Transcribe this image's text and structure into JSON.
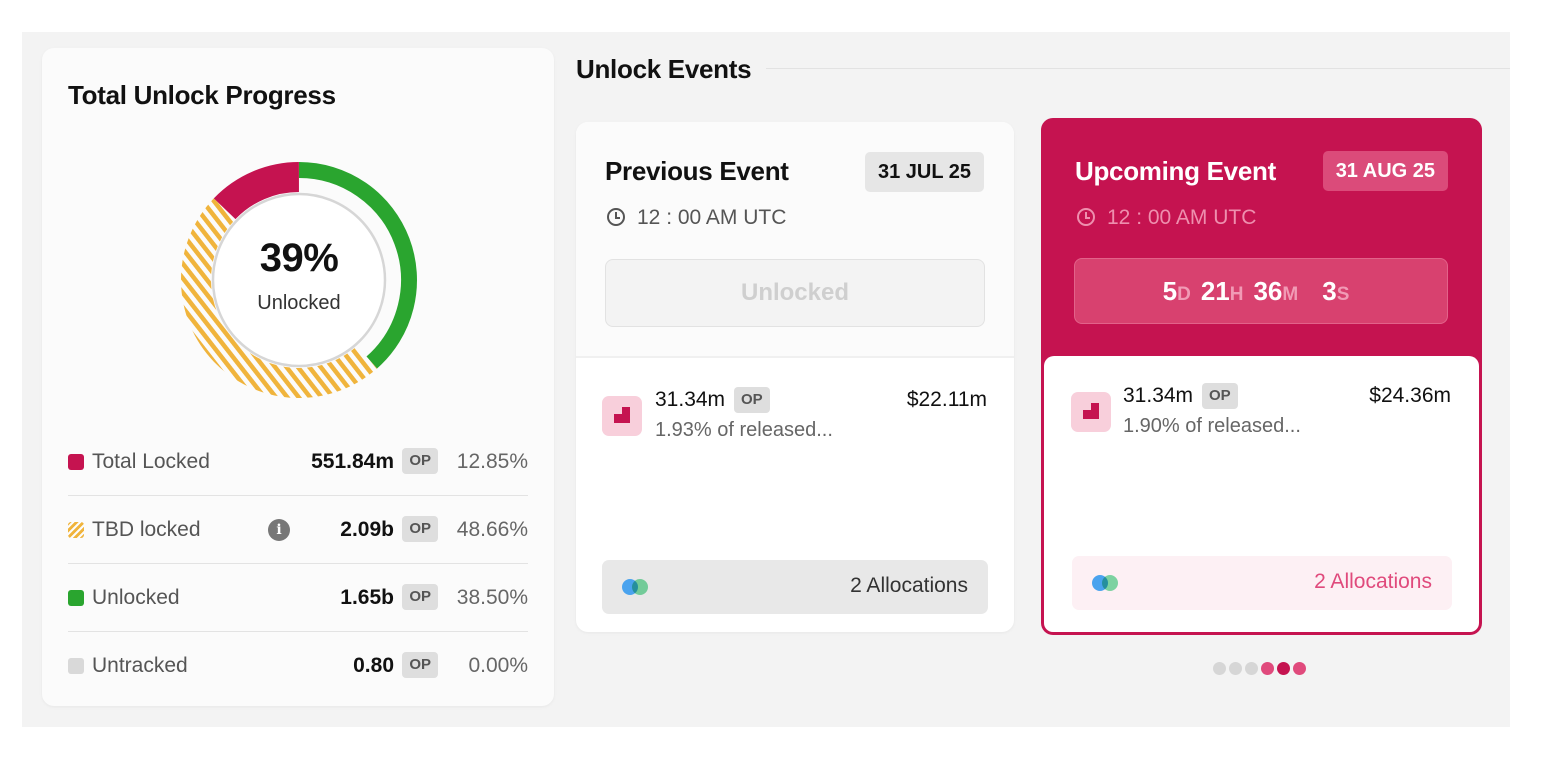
{
  "progress": {
    "title": "Total Unlock Progress",
    "percent_text": "39%",
    "percent_label": "Unlocked",
    "legend": [
      {
        "label": "Total Locked",
        "amount": "551.84m",
        "unit": "OP",
        "pct": "12.85%",
        "color": "#c51350",
        "pattern": "solid",
        "info": false
      },
      {
        "label": "TBD locked",
        "amount": "2.09b",
        "unit": "OP",
        "pct": "48.66%",
        "color": "#f0b43c",
        "pattern": "striped",
        "info": true
      },
      {
        "label": "Unlocked",
        "amount": "1.65b",
        "unit": "OP",
        "pct": "38.50%",
        "color": "#2aa52f",
        "pattern": "solid",
        "info": false
      },
      {
        "label": "Untracked",
        "amount": "0.80",
        "unit": "OP",
        "pct": "0.00%",
        "color": "#d9d9d9",
        "pattern": "solid",
        "info": false
      }
    ],
    "info_glyph": "i"
  },
  "events": {
    "title": "Unlock Events",
    "previous": {
      "title": "Previous Event",
      "date": "31 JUL 25",
      "time": "12 : 00 AM UTC",
      "status": "Unlocked",
      "amount": "31.34m",
      "unit": "OP",
      "sub": "1.93% of released...",
      "usd": "$22.11m",
      "allocations": "2 Allocations"
    },
    "upcoming": {
      "title": "Upcoming Event",
      "date": "31 AUG 25",
      "time": "12 : 00 AM UTC",
      "countdown": {
        "days": "5",
        "days_unit": "D",
        "hours": "21",
        "hours_unit": "H",
        "minutes": "36",
        "minutes_unit": "M",
        "seconds": "3",
        "seconds_unit": "S"
      },
      "amount": "31.34m",
      "unit": "OP",
      "sub": "1.90% of released...",
      "usd": "$24.36m",
      "allocations": "2 Allocations"
    },
    "pager": {
      "count": 6,
      "active": [
        3,
        4,
        5
      ]
    }
  },
  "colors": {
    "accent": "#c51350",
    "unlocked": "#2aa52f",
    "tbd": "#f0b43c",
    "pink_text": "#e04a7c"
  }
}
